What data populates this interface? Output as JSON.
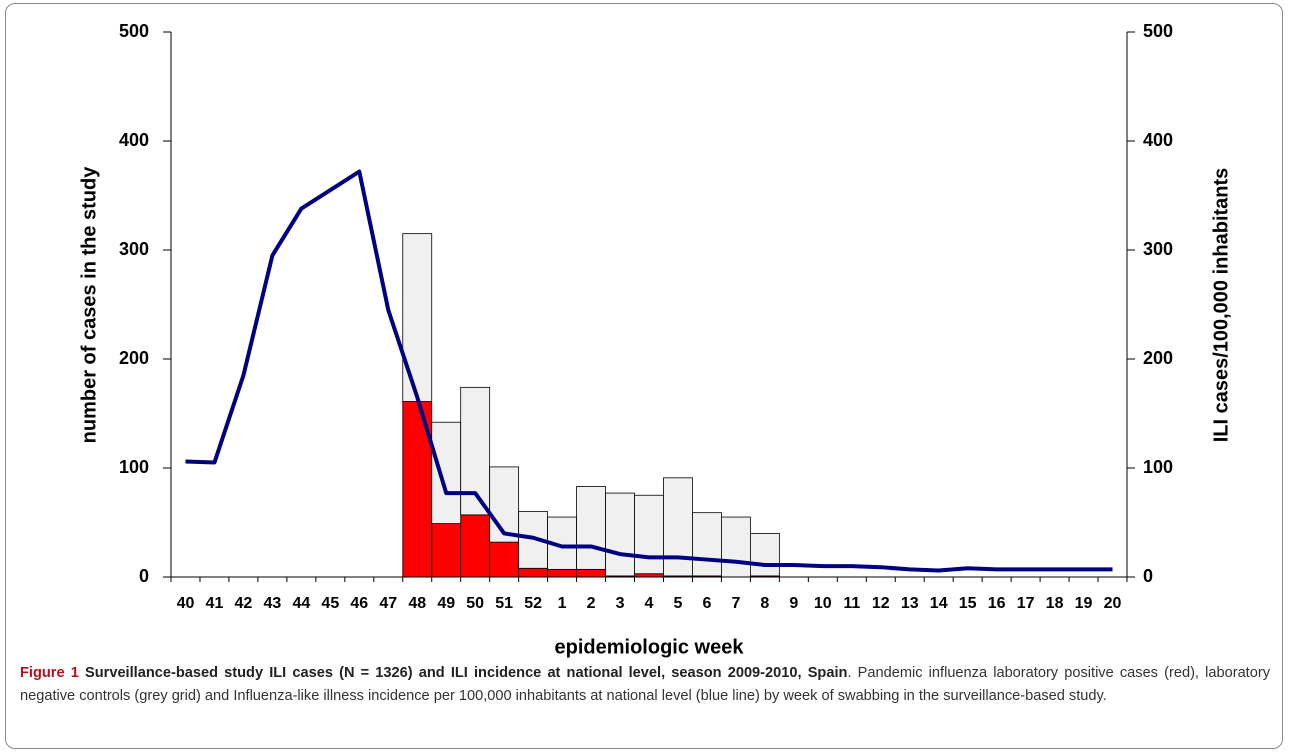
{
  "chart_data": {
    "type": "bar",
    "stacked": true,
    "categories": [
      "40",
      "41",
      "42",
      "43",
      "44",
      "45",
      "46",
      "47",
      "48",
      "49",
      "50",
      "51",
      "52",
      "1",
      "2",
      "3",
      "4",
      "5",
      "6",
      "7",
      "8",
      "9",
      "10",
      "11",
      "12",
      "13",
      "14",
      "15",
      "16",
      "17",
      "18",
      "19",
      "20"
    ],
    "series": [
      {
        "type": "bar",
        "color": "#ff0000",
        "values": [
          null,
          null,
          null,
          null,
          null,
          null,
          null,
          null,
          161,
          49,
          57,
          32,
          8,
          7,
          7,
          1,
          3,
          1,
          1,
          0,
          1,
          null,
          null,
          null,
          null,
          null,
          null,
          null,
          null,
          null,
          null,
          null,
          null
        ]
      },
      {
        "type": "bar",
        "color": "#f0f0f0",
        "values": [
          null,
          null,
          null,
          null,
          null,
          null,
          null,
          null,
          154,
          93,
          117,
          69,
          52,
          48,
          76,
          76,
          72,
          90,
          58,
          55,
          39,
          null,
          null,
          null,
          null,
          null,
          null,
          null,
          null,
          null,
          null,
          null,
          null
        ]
      },
      {
        "type": "line",
        "axis": "y2",
        "color": "#000080",
        "values": [
          106,
          105,
          185,
          295,
          338,
          355,
          372,
          245,
          165,
          77,
          77,
          40,
          36,
          28,
          28,
          21,
          18,
          18,
          16,
          14,
          11,
          11,
          10,
          10,
          9,
          7,
          6,
          8,
          7,
          7,
          7,
          7,
          7
        ]
      }
    ],
    "ylabel": "number of cases in the study",
    "y2label": "ILI cases/100,000 inhabitants",
    "xlabel": "epidemiologic week",
    "ylim": [
      0,
      500
    ],
    "yticks": [
      0,
      100,
      200,
      300,
      400,
      500
    ],
    "y2lim": [
      0,
      500
    ],
    "y2ticks": [
      0,
      100,
      200,
      300,
      400,
      500
    ],
    "grid": false
  },
  "caption": {
    "label": "Figure 1",
    "title": "Surveillance-based study ILI cases (N = 1326) and ILI incidence at national level, season 2009-2010, Spain",
    "text": ". Pandemic influenza laboratory positive cases (red), laboratory negative controls (grey grid) and Influenza-like illness incidence per 100,000 inhabitants at national level (blue line) by week of swabbing in the surveillance-based study."
  }
}
